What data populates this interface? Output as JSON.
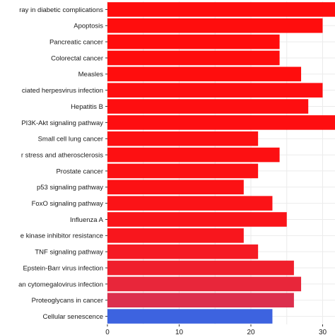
{
  "chart_data": {
    "type": "bar",
    "orientation": "horizontal",
    "categories": [
      "ray in diabetic complications",
      "Apoptosis",
      "Pancreatic cancer",
      "Colorectal cancer",
      "Measles",
      "ciated herpesvirus infection",
      "Hepatitis B",
      "PI3K-Akt signaling pathway",
      "Small cell lung cancer",
      "r stress and atherosclerosis",
      "Prostate cancer",
      "p53 signaling pathway",
      "FoxO signaling pathway",
      "Influenza A",
      "e kinase inhibitor resistance",
      "TNF signaling pathway",
      "Epstein-Barr virus infection",
      "an cytomegalovirus infection",
      "Proteoglycans in cancer",
      "Cellular senescence"
    ],
    "values": [
      32,
      30,
      24,
      24,
      27,
      30,
      28,
      33,
      21,
      24,
      21,
      19,
      23,
      25,
      19,
      21,
      26,
      27,
      26,
      23
    ],
    "bar_colors": [
      "#ff0d0d",
      "#ff0d0d",
      "#ff0d0d",
      "#ff0d0d",
      "#ff0d0d",
      "#fe0e10",
      "#fe0e10",
      "#fe0e10",
      "#fd1012",
      "#fd1012",
      "#fc1114",
      "#fc1114",
      "#fb1317",
      "#fa1419",
      "#f8161d",
      "#f51a23",
      "#f01f2c",
      "#e8263a",
      "#dc2f4d",
      "#3d63e0"
    ],
    "x_ticks": [
      "0",
      "10",
      "20",
      "30"
    ],
    "xlim": [
      0,
      33
    ],
    "title": "",
    "xlabel": "",
    "ylabel": "",
    "grid": true,
    "panel_background": "#ffffff",
    "grid_color": "#ebebeb"
  }
}
